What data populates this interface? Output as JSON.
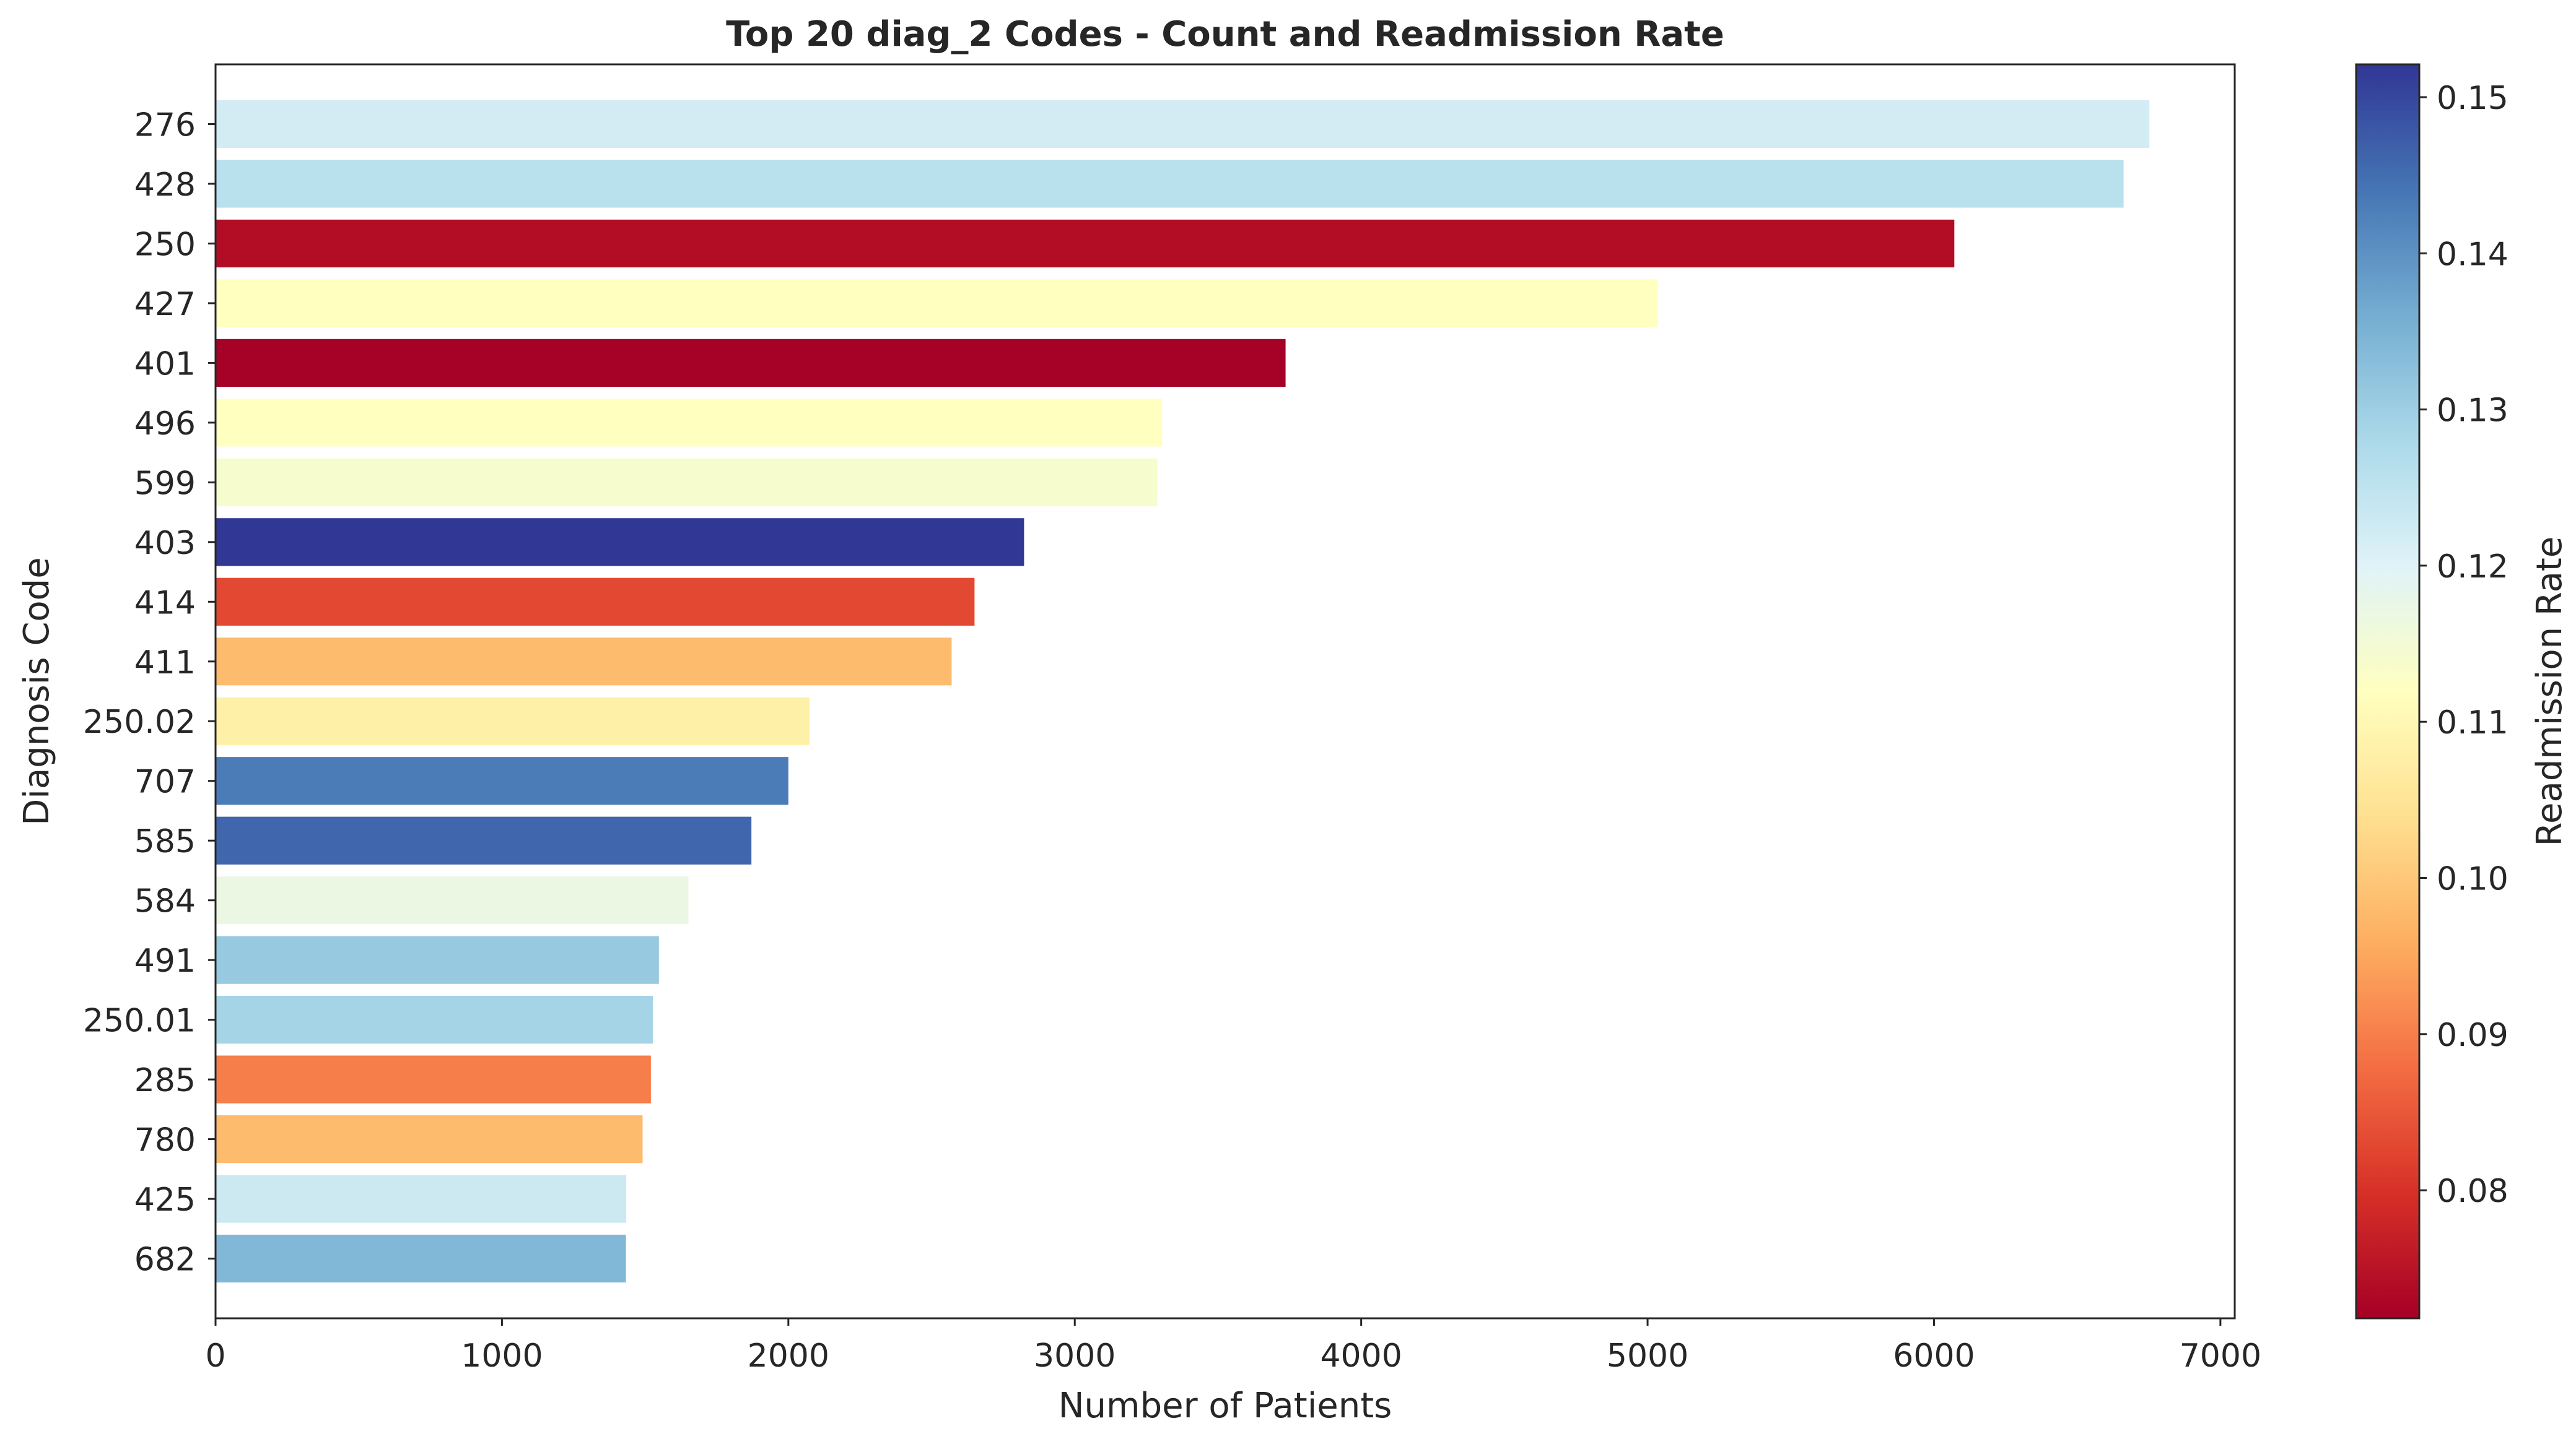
{
  "chart_data": {
    "type": "bar",
    "orientation": "horizontal",
    "title": "Top 20 diag_2 Codes - Count and Readmission Rate",
    "xlabel": "Number of Patients",
    "ylabel": "Diagnosis Code",
    "xlim": [
      0,
      7050
    ],
    "xticks": [
      0,
      1000,
      2000,
      3000,
      4000,
      5000,
      6000,
      7000
    ],
    "categories": [
      "276",
      "428",
      "250",
      "427",
      "401",
      "496",
      "599",
      "403",
      "414",
      "411",
      "250.02",
      "707",
      "585",
      "584",
      "491",
      "250.01",
      "285",
      "780",
      "425",
      "682"
    ],
    "values": [
      6752,
      6662,
      6071,
      5036,
      3736,
      3305,
      3288,
      2823,
      2650,
      2570,
      2074,
      2000,
      1871,
      1651,
      1548,
      1527,
      1520,
      1491,
      1434,
      1433
    ],
    "readmission_rate": [
      0.122,
      0.126,
      0.074,
      0.112,
      0.072,
      0.112,
      0.114,
      0.152,
      0.083,
      0.098,
      0.108,
      0.143,
      0.146,
      0.117,
      0.131,
      0.129,
      0.09,
      0.098,
      0.123,
      0.134
    ],
    "grid": false,
    "colorbar": {
      "label": "Readmission Rate",
      "colormap": "RdYlBu",
      "range": [
        0.0718,
        0.1521
      ],
      "ticks": [
        0.08,
        0.09,
        0.1,
        0.11,
        0.12,
        0.13,
        0.14,
        0.15
      ],
      "tick_labels": [
        "0.08",
        "0.09",
        "0.10",
        "0.11",
        "0.12",
        "0.13",
        "0.14",
        "0.15"
      ]
    }
  }
}
